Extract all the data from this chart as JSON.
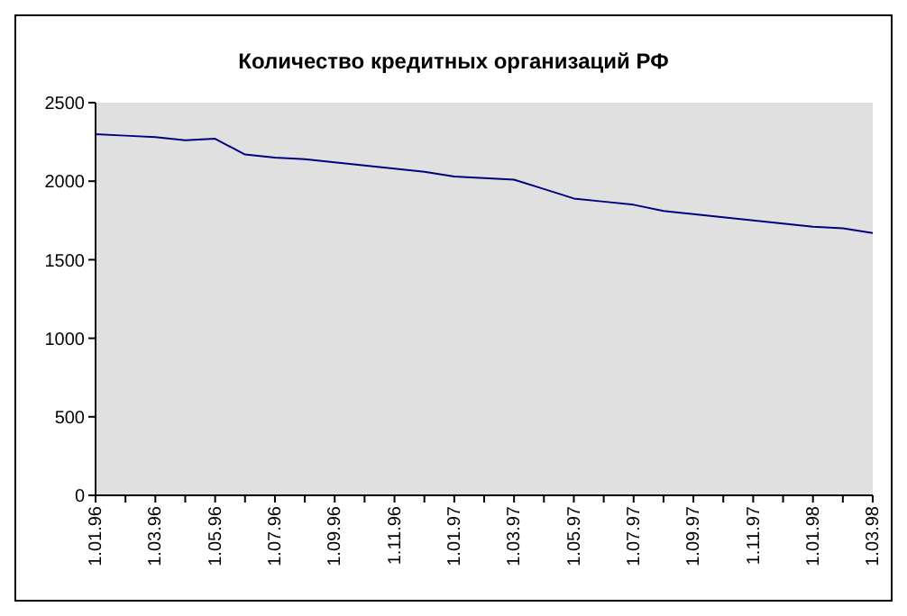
{
  "chart_data": {
    "type": "line",
    "title": "Количество кредитных организаций РФ",
    "categories": [
      "1.01.96",
      null,
      "1.03.96",
      null,
      "1.05.96",
      null,
      "1.07.96",
      null,
      "1.09.96",
      null,
      "1.11.96",
      null,
      "1.01.97",
      null,
      "1.03.97",
      null,
      "1.05.97",
      null,
      "1.07.97",
      null,
      "1.09.97",
      null,
      "1.11.97",
      null,
      "1.01.98",
      null,
      "1.03.98"
    ],
    "series": [
      {
        "color": "#000080",
        "values": [
          2300,
          2290,
          2280,
          2260,
          2270,
          2170,
          2150,
          2140,
          2120,
          2100,
          2080,
          2060,
          2030,
          2020,
          2010,
          1950,
          1890,
          1870,
          1850,
          1810,
          1790,
          1770,
          1750,
          1730,
          1710,
          1700,
          1670
        ]
      }
    ],
    "ylim": [
      0,
      2500
    ],
    "yticks": [
      0,
      500,
      1000,
      1500,
      2000,
      2500
    ],
    "grid": false,
    "marker": "none",
    "line_style": "solid"
  }
}
